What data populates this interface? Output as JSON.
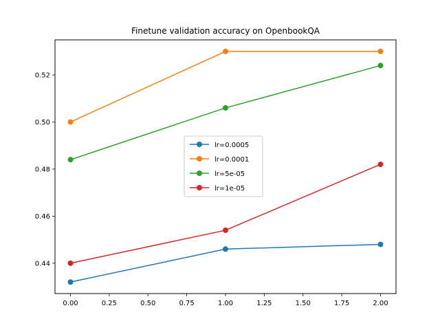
{
  "chart_data": {
    "type": "line",
    "title": "Finetune validation accuracy on OpenbookQA",
    "xlabel": "",
    "ylabel": "",
    "x": [
      0,
      1,
      2
    ],
    "xlim": [
      -0.1,
      2.1
    ],
    "ylim": [
      0.4271,
      0.5349
    ],
    "xticks": [
      0.0,
      0.25,
      0.5,
      0.75,
      1.0,
      1.25,
      1.5,
      1.75,
      2.0
    ],
    "xtick_labels": [
      "0.00",
      "0.25",
      "0.50",
      "0.75",
      "1.00",
      "1.25",
      "1.50",
      "1.75",
      "2.00"
    ],
    "yticks": [
      0.44,
      0.46,
      0.48,
      0.5,
      0.52
    ],
    "ytick_labels": [
      "0.44",
      "0.46",
      "0.48",
      "0.50",
      "0.52"
    ],
    "grid": false,
    "legend_position": "center",
    "series": [
      {
        "name": "lr=0.0005",
        "color": "#1f77b4",
        "values": [
          0.432,
          0.446,
          0.448
        ]
      },
      {
        "name": "lr=0.0001",
        "color": "#ff7f0e",
        "values": [
          0.5,
          0.53,
          0.53
        ]
      },
      {
        "name": "lr=5e-05",
        "color": "#2ca02c",
        "values": [
          0.484,
          0.506,
          0.524
        ]
      },
      {
        "name": "lr=1e-05",
        "color": "#d62728",
        "values": [
          0.44,
          0.454,
          0.482
        ]
      }
    ]
  }
}
